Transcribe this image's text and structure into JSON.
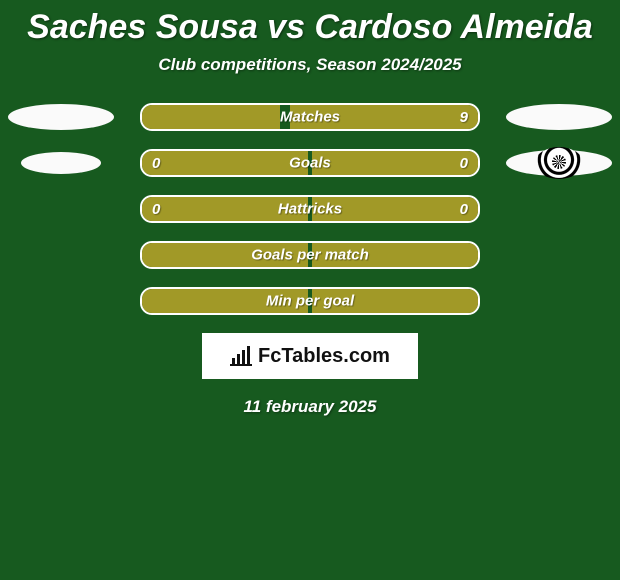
{
  "background_color": "#175a1f",
  "accent_color": "#a19927",
  "title": "Saches Sousa vs Cardoso Almeida",
  "subtitle": "Club competitions, Season 2024/2025",
  "date": "11 february 2025",
  "site_logo_text": "FcTables.com",
  "rows": [
    {
      "label": "Matches",
      "left_value": "",
      "right_value": "9",
      "left_pct": 41,
      "right_pct": 56,
      "left_badge": "ellipse-large",
      "right_badge": "ellipse-large"
    },
    {
      "label": "Goals",
      "left_value": "0",
      "right_value": "0",
      "left_pct": 49.5,
      "right_pct": 49.5,
      "left_badge": "ellipse-small",
      "right_badge": "crest"
    },
    {
      "label": "Hattricks",
      "left_value": "0",
      "right_value": "0",
      "left_pct": 49.5,
      "right_pct": 49.5,
      "left_badge": "",
      "right_badge": ""
    },
    {
      "label": "Goals per match",
      "left_value": "",
      "right_value": "",
      "left_pct": 49.5,
      "right_pct": 49.5,
      "left_badge": "",
      "right_badge": ""
    },
    {
      "label": "Min per goal",
      "left_value": "",
      "right_value": "",
      "left_pct": 49.5,
      "right_pct": 49.5,
      "left_badge": "",
      "right_badge": ""
    }
  ]
}
